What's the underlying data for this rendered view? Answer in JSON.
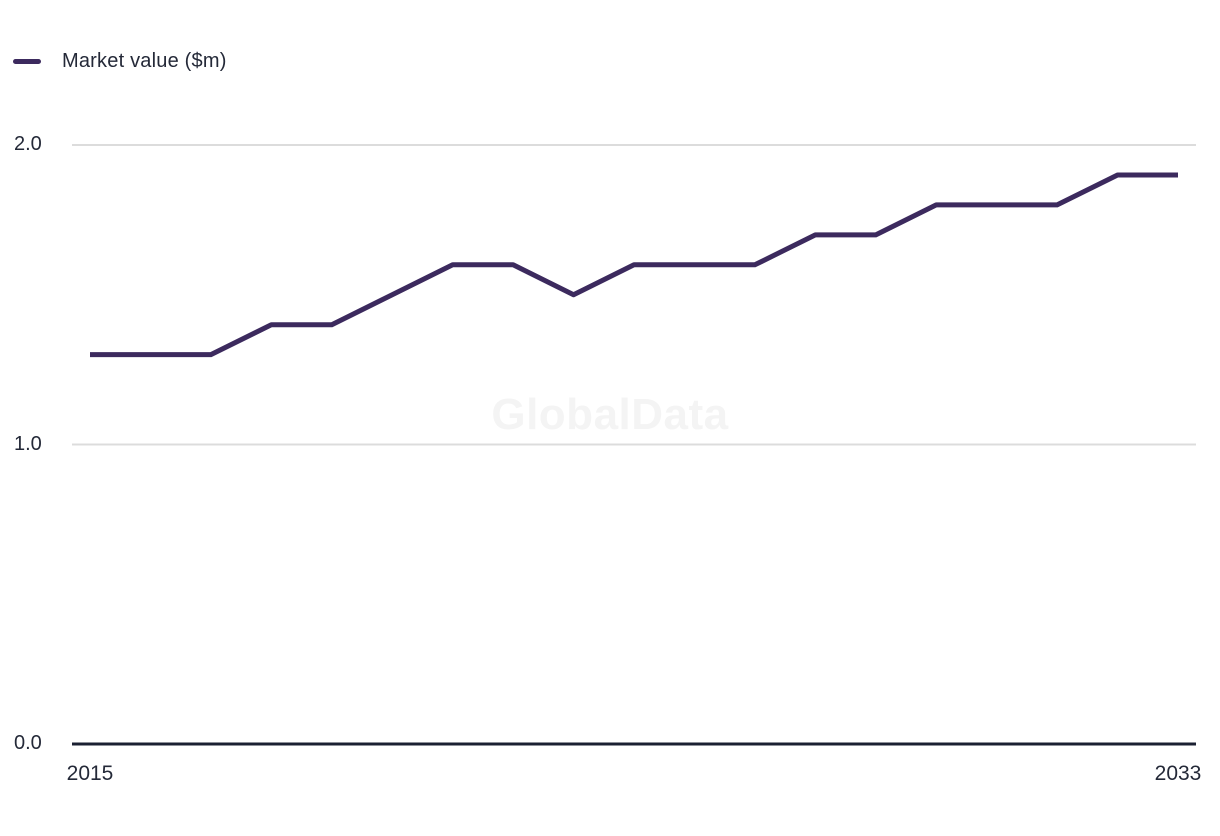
{
  "chart_data": {
    "type": "line",
    "title": "",
    "x": [
      2015,
      2016,
      2017,
      2018,
      2019,
      2020,
      2021,
      2022,
      2023,
      2024,
      2025,
      2026,
      2027,
      2028,
      2029,
      2030,
      2031,
      2032,
      2033
    ],
    "series": [
      {
        "name": "Market value ($m)",
        "color": "#3c2a5e",
        "values": [
          1.3,
          1.3,
          1.3,
          1.4,
          1.4,
          1.5,
          1.6,
          1.6,
          1.5,
          1.6,
          1.6,
          1.6,
          1.7,
          1.7,
          1.8,
          1.8,
          1.8,
          1.9,
          1.9
        ]
      }
    ],
    "xlabel": "",
    "ylabel": "",
    "ylim": [
      0,
      2.0
    ],
    "y_ticks": [
      0,
      1,
      2
    ],
    "y_tick_labels": [
      "0.0",
      "1.0",
      "2.0"
    ],
    "x_tick_labels": [
      "2015",
      "2033"
    ],
    "grid": "horizontal",
    "legend_position": "top-left",
    "watermark": "GlobalData",
    "colors": {
      "line": "#3c2a5e",
      "grid": "#dcdcdc",
      "axis": "#1b2032",
      "tick_label": "#242938",
      "watermark": "#f4f4f4",
      "background": "#ffffff"
    }
  }
}
